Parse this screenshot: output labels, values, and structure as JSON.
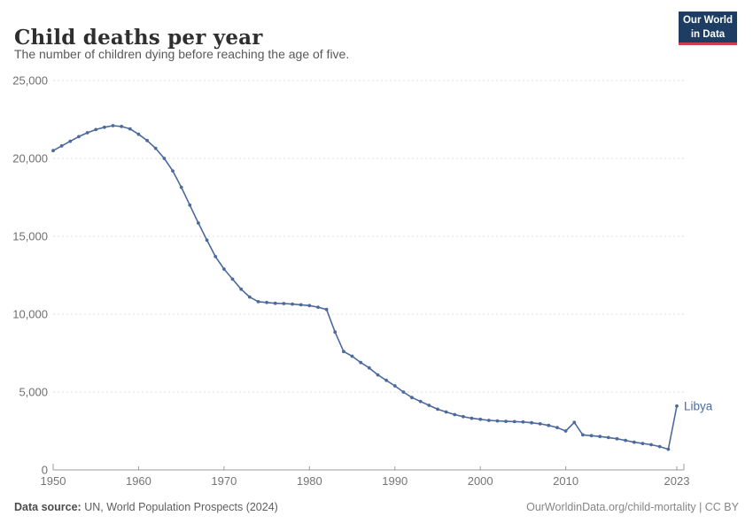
{
  "header": {
    "title": "Child deaths per year",
    "subtitle": "The number of children dying before reaching the age of five.",
    "logo": {
      "line1": "Our World",
      "line2": "in Data",
      "bg_color": "#1d3d63",
      "accent_color": "#cf3c4c"
    }
  },
  "chart_data": {
    "type": "line",
    "title": "Child deaths per year",
    "xlabel": "",
    "ylabel": "",
    "xlim": [
      1950,
      2023
    ],
    "ylim": [
      0,
      25000
    ],
    "grid": "horizontal-dashed",
    "legend_position": "end-of-line-label",
    "x_ticks": [
      1950,
      1960,
      1970,
      1980,
      1990,
      2000,
      2010,
      2023
    ],
    "y_ticks": [
      0,
      5000,
      10000,
      15000,
      20000,
      25000
    ],
    "line_color": "#4c6a9c",
    "series": [
      {
        "name": "Libya",
        "color": "#4c6a9c",
        "x": [
          1950,
          1951,
          1952,
          1953,
          1954,
          1955,
          1956,
          1957,
          1958,
          1959,
          1960,
          1961,
          1962,
          1963,
          1964,
          1965,
          1966,
          1967,
          1968,
          1969,
          1970,
          1971,
          1972,
          1973,
          1974,
          1975,
          1976,
          1977,
          1978,
          1979,
          1980,
          1981,
          1982,
          1983,
          1984,
          1985,
          1986,
          1987,
          1988,
          1989,
          1990,
          1991,
          1992,
          1993,
          1994,
          1995,
          1996,
          1997,
          1998,
          1999,
          2000,
          2001,
          2002,
          2003,
          2004,
          2005,
          2006,
          2007,
          2008,
          2009,
          2010,
          2011,
          2012,
          2013,
          2014,
          2015,
          2016,
          2017,
          2018,
          2019,
          2020,
          2021,
          2022,
          2023
        ],
        "values": [
          20500,
          20800,
          21100,
          21400,
          21650,
          21850,
          22000,
          22100,
          22050,
          21900,
          21550,
          21150,
          20650,
          20000,
          19200,
          18150,
          17000,
          15850,
          14750,
          13700,
          12900,
          12250,
          11600,
          11100,
          10800,
          10750,
          10700,
          10680,
          10650,
          10600,
          10550,
          10450,
          10300,
          8850,
          7600,
          7300,
          6900,
          6550,
          6100,
          5750,
          5400,
          5000,
          4650,
          4400,
          4150,
          3900,
          3720,
          3550,
          3420,
          3320,
          3250,
          3180,
          3150,
          3120,
          3100,
          3080,
          3030,
          2960,
          2860,
          2720,
          2500,
          3050,
          2250,
          2200,
          2150,
          2080,
          2000,
          1900,
          1780,
          1700,
          1620,
          1500,
          1330,
          4100
        ]
      }
    ]
  },
  "footer": {
    "source_label": "Data source:",
    "source_value": " UN, World Population Prospects (2024)",
    "credit": "OurWorldinData.org/child-mortality | CC BY"
  }
}
